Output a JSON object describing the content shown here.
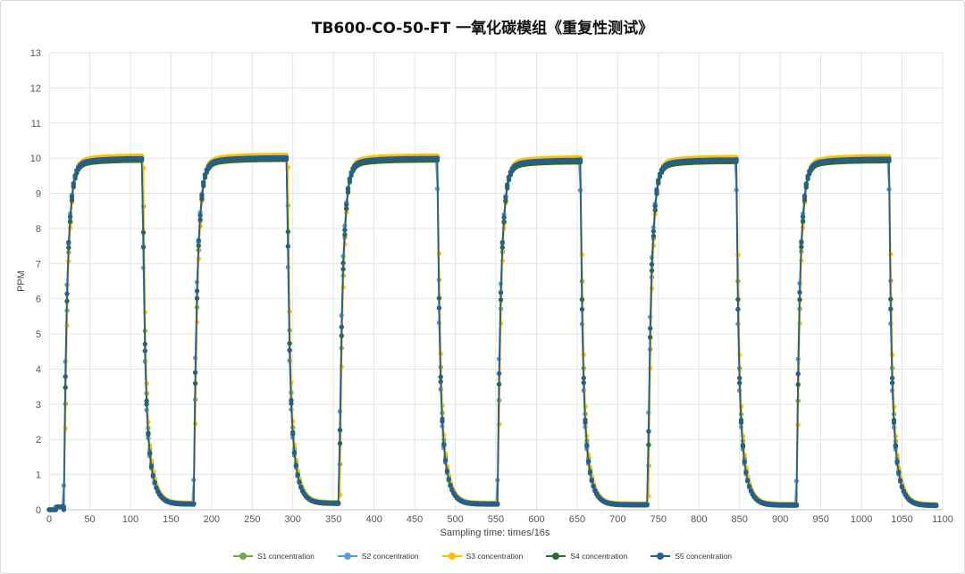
{
  "chart_data": {
    "type": "scatter",
    "title": "TB600-CO-50-FT 一氧化碳模组《重复性测试》",
    "xlabel": "Sampling time: times/16s",
    "ylabel": "PPM",
    "xlim": [
      0,
      1100
    ],
    "ylim": [
      0,
      13
    ],
    "xticks": [
      0,
      50,
      100,
      150,
      200,
      250,
      300,
      350,
      400,
      450,
      500,
      550,
      600,
      650,
      700,
      750,
      800,
      850,
      900,
      950,
      1000,
      1050,
      1100
    ],
    "yticks": [
      0,
      1,
      2,
      3,
      4,
      5,
      6,
      7,
      8,
      9,
      10,
      11,
      12,
      13
    ],
    "grid": true,
    "legend_position": "bottom",
    "cycles": [
      {
        "rise_start": 18,
        "plateau": 10.0,
        "fall_start": 115,
        "baseline_end": 0.17
      },
      {
        "rise_start": 178,
        "plateau": 10.02,
        "fall_start": 293,
        "baseline_end": 0.19
      },
      {
        "rise_start": 357,
        "plateau": 10.0,
        "fall_start": 478,
        "baseline_end": 0.17
      },
      {
        "rise_start": 552,
        "plateau": 9.95,
        "fall_start": 654,
        "baseline_end": 0.15
      },
      {
        "rise_start": 737,
        "plateau": 9.96,
        "fall_start": 846,
        "baseline_end": 0.14
      },
      {
        "rise_start": 920,
        "plateau": 9.98,
        "fall_start": 1034,
        "baseline_end": 0.13
      }
    ],
    "baseline_start": 0.0,
    "series": [
      {
        "name": "S1 concentration",
        "color": "#70ad47",
        "offset": 0.04,
        "lag": 0.5
      },
      {
        "name": "S2 concentration",
        "color": "#5b9bd5",
        "offset": -0.02,
        "lag": -0.3
      },
      {
        "name": "S3 concentration",
        "color": "#ffc000",
        "offset": 0.07,
        "lag": 0.9
      },
      {
        "name": "S4 concentration",
        "color": "#2e6b30",
        "offset": -0.06,
        "lag": 0.2
      },
      {
        "name": "S5 concentration",
        "color": "#255e91",
        "offset": 0.0,
        "lag": 0.0
      }
    ]
  }
}
